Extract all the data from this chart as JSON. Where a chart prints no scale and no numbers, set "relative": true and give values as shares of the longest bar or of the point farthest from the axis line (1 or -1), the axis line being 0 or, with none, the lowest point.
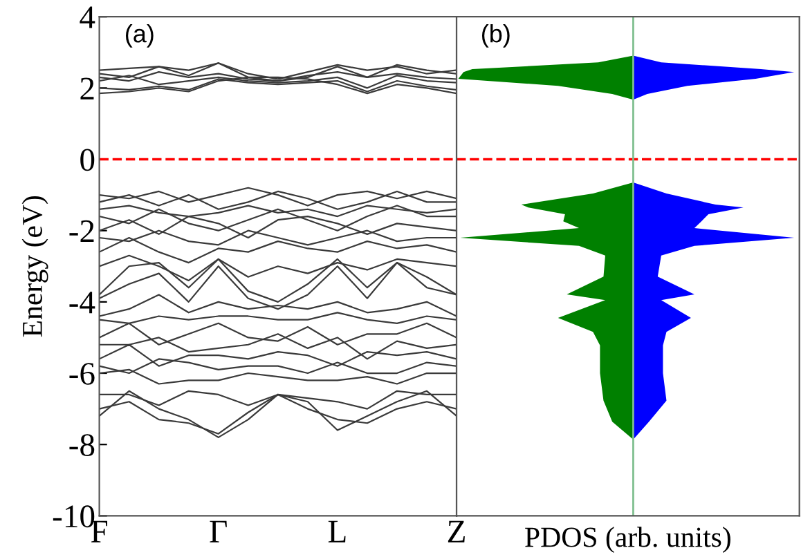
{
  "chart_data": [
    {
      "type": "line",
      "ylabel": "Energy (eV)",
      "annotations": [
        "(a)"
      ],
      "categories": [
        "F",
        null,
        null,
        null,
        "Γ",
        null,
        null,
        null,
        "L",
        null,
        null,
        null,
        "Z"
      ],
      "ylim": [
        -10,
        4
      ],
      "yticks": [
        -10,
        -8,
        -6,
        -4,
        -2,
        0,
        2,
        4
      ],
      "grid": false,
      "line_style": "solid",
      "ref_lines": [
        {
          "axis": "y",
          "value": 0,
          "color": "#ff0000",
          "line_style": "dashed"
        }
      ],
      "series": [
        {
          "color": "#3a3a3a",
          "values": [
            2.5,
            2.55,
            2.6,
            2.5,
            2.7,
            2.4,
            2.25,
            2.45,
            2.65,
            2.5,
            2.6,
            2.4,
            2.5
          ]
        },
        {
          "color": "#3a3a3a",
          "values": [
            2.4,
            2.3,
            2.6,
            2.35,
            2.7,
            2.3,
            2.2,
            2.3,
            2.6,
            2.3,
            2.65,
            2.5,
            2.4
          ]
        },
        {
          "color": "#3a3a3a",
          "values": [
            2.3,
            2.2,
            2.45,
            2.3,
            2.4,
            2.25,
            2.2,
            2.35,
            2.45,
            2.3,
            2.4,
            2.3,
            2.25
          ]
        },
        {
          "color": "#3a3a3a",
          "values": [
            2.2,
            2.35,
            2.1,
            2.2,
            2.3,
            2.2,
            2.15,
            2.2,
            2.3,
            2.0,
            2.35,
            2.2,
            2.15
          ]
        },
        {
          "color": "#3a3a3a",
          "values": [
            2.0,
            1.95,
            2.05,
            1.95,
            2.25,
            2.15,
            2.1,
            2.15,
            2.2,
            1.9,
            2.2,
            2.05,
            1.95
          ]
        },
        {
          "color": "#3a3a3a",
          "values": [
            1.85,
            1.9,
            2.0,
            1.9,
            2.2,
            2.3,
            2.3,
            2.25,
            2.1,
            1.85,
            2.1,
            2.0,
            1.85
          ]
        },
        {
          "color": "#3a3a3a",
          "values": [
            -1.0,
            -1.1,
            -0.9,
            -1.2,
            -1.0,
            -0.8,
            -1.0,
            -1.3,
            -1.0,
            -0.9,
            -1.1,
            -0.9,
            -1.1
          ]
        },
        {
          "color": "#3a3a3a",
          "values": [
            -1.2,
            -1.0,
            -1.3,
            -1.0,
            -1.4,
            -1.2,
            -0.9,
            -1.1,
            -1.4,
            -1.2,
            -0.9,
            -1.2,
            -1.2
          ]
        },
        {
          "color": "#3a3a3a",
          "values": [
            -1.4,
            -1.3,
            -1.5,
            -1.6,
            -1.5,
            -1.3,
            -1.5,
            -1.4,
            -1.6,
            -1.3,
            -1.4,
            -1.5,
            -1.4
          ]
        },
        {
          "color": "#3a3a3a",
          "values": [
            -1.6,
            -1.8,
            -1.4,
            -1.8,
            -2.0,
            -1.7,
            -1.4,
            -1.7,
            -2.0,
            -1.6,
            -1.3,
            -1.6,
            -1.6
          ]
        },
        {
          "color": "#3a3a3a",
          "values": [
            -2.0,
            -1.7,
            -2.1,
            -1.6,
            -1.8,
            -2.2,
            -1.7,
            -1.6,
            -1.8,
            -2.1,
            -1.8,
            -1.9,
            -2.0
          ]
        },
        {
          "color": "#3a3a3a",
          "values": [
            -2.2,
            -2.3,
            -2.0,
            -2.3,
            -2.4,
            -2.0,
            -2.2,
            -2.4,
            -2.2,
            -2.0,
            -2.3,
            -2.2,
            -2.2
          ]
        },
        {
          "color": "#3a3a3a",
          "values": [
            -2.6,
            -2.2,
            -2.6,
            -2.9,
            -2.5,
            -2.6,
            -2.3,
            -2.5,
            -2.6,
            -2.3,
            -2.5,
            -2.4,
            -2.6
          ]
        },
        {
          "color": "#3a3a3a",
          "values": [
            -3.0,
            -2.7,
            -3.0,
            -3.4,
            -2.8,
            -3.3,
            -3.0,
            -3.2,
            -2.9,
            -3.1,
            -2.8,
            -2.9,
            -3.0
          ]
        },
        {
          "color": "#3a3a3a",
          "values": [
            -3.8,
            -3.0,
            -2.9,
            -3.6,
            -2.8,
            -3.7,
            -4.0,
            -3.5,
            -2.8,
            -3.6,
            -2.9,
            -3.3,
            -3.8
          ]
        },
        {
          "color": "#3a3a3a",
          "values": [
            -3.9,
            -3.5,
            -3.2,
            -4.0,
            -3.0,
            -3.9,
            -4.2,
            -3.8,
            -3.0,
            -3.9,
            -2.9,
            -3.6,
            -3.8
          ]
        },
        {
          "color": "#3a3a3a",
          "values": [
            -4.4,
            -4.2,
            -3.8,
            -4.3,
            -4.0,
            -4.2,
            -4.1,
            -4.2,
            -4.0,
            -4.3,
            -4.2,
            -4.0,
            -4.4
          ]
        },
        {
          "color": "#3a3a3a",
          "values": [
            -4.5,
            -4.6,
            -4.4,
            -4.5,
            -4.4,
            -4.4,
            -4.5,
            -4.5,
            -4.3,
            -4.5,
            -4.6,
            -4.4,
            -4.5
          ]
        },
        {
          "color": "#3a3a3a",
          "values": [
            -5.0,
            -4.6,
            -5.2,
            -4.9,
            -4.6,
            -5.0,
            -5.1,
            -4.7,
            -5.2,
            -4.9,
            -4.9,
            -4.6,
            -5.0
          ]
        },
        {
          "color": "#3a3a3a",
          "values": [
            -5.2,
            -5.2,
            -5.0,
            -5.4,
            -5.3,
            -5.2,
            -4.9,
            -5.3,
            -5.0,
            -5.6,
            -5.1,
            -5.3,
            -5.2
          ]
        },
        {
          "color": "#3a3a3a",
          "values": [
            -5.6,
            -5.2,
            -5.8,
            -5.5,
            -5.5,
            -5.6,
            -5.4,
            -5.5,
            -5.8,
            -5.4,
            -5.5,
            -5.4,
            -5.6
          ]
        },
        {
          "color": "#3a3a3a",
          "values": [
            -5.8,
            -6.0,
            -5.6,
            -5.7,
            -5.9,
            -5.8,
            -5.8,
            -6.0,
            -5.7,
            -6.0,
            -6.0,
            -5.7,
            -5.8
          ]
        },
        {
          "color": "#3a3a3a",
          "values": [
            -6.0,
            -5.9,
            -6.3,
            -6.2,
            -6.2,
            -6.0,
            -6.1,
            -6.2,
            -6.2,
            -6.1,
            -6.3,
            -6.0,
            -6.0
          ]
        },
        {
          "color": "#3a3a3a",
          "values": [
            -6.6,
            -6.6,
            -6.9,
            -6.5,
            -6.6,
            -6.9,
            -6.6,
            -6.7,
            -6.8,
            -7.0,
            -6.5,
            -6.6,
            -6.6
          ]
        },
        {
          "color": "#3a3a3a",
          "values": [
            -7.2,
            -6.5,
            -7.0,
            -7.3,
            -7.8,
            -7.3,
            -6.6,
            -6.8,
            -7.6,
            -7.2,
            -6.8,
            -6.5,
            -7.2
          ]
        },
        {
          "color": "#3a3a3a",
          "values": [
            -7.0,
            -6.8,
            -7.3,
            -7.4,
            -7.7,
            -7.1,
            -6.6,
            -7.0,
            -7.3,
            -7.4,
            -7.0,
            -6.8,
            -7.0
          ]
        }
      ]
    },
    {
      "type": "area",
      "orientation": "horizontal",
      "relative": true,
      "xlabel": "PDOS (arb. units)",
      "annotations": [
        "(b)"
      ],
      "tick_labels": false,
      "ylim": [
        -10,
        4
      ],
      "x": [
        2.91,
        2.72,
        2.53,
        2.45,
        2.26,
        2.06,
        1.83,
        1.67,
        -0.65,
        -0.96,
        -1.27,
        -1.35,
        -1.54,
        -1.74,
        -1.93,
        -2.2,
        -2.43,
        -2.7,
        -3.29,
        -3.79,
        -3.95,
        -4.45,
        -4.84,
        -5.22,
        -6.0,
        -6.77,
        -7.36,
        -7.86
      ],
      "ref_lines": [
        {
          "axis": "y",
          "value": 0,
          "color": "#ff0000",
          "line_style": "dashed"
        },
        {
          "axis": "x",
          "value": 0,
          "color": "#7fbf8f",
          "line_style": "solid"
        }
      ],
      "series": [
        {
          "color": "#008000",
          "values": [
            0,
            -0.2,
            -0.92,
            -0.97,
            -1,
            -0.43,
            -0.12,
            0,
            0,
            -0.23,
            -0.64,
            -0.6,
            -0.39,
            -0.4,
            -0.31,
            -0.99,
            -0.31,
            -0.16,
            -0.17,
            -0.38,
            -0.16,
            -0.43,
            -0.23,
            -0.19,
            -0.19,
            -0.17,
            -0.12,
            0
          ]
        },
        {
          "color": "#0000ff",
          "values": [
            0,
            0.16,
            0.73,
            0.92,
            0.7,
            0.31,
            0.08,
            0,
            0,
            0.19,
            0.47,
            0.63,
            0.43,
            0.39,
            0.35,
            0.92,
            0.35,
            0.16,
            0.14,
            0.35,
            0.16,
            0.33,
            0.19,
            0.17,
            0.17,
            0.19,
            0.09,
            0
          ]
        }
      ]
    }
  ]
}
